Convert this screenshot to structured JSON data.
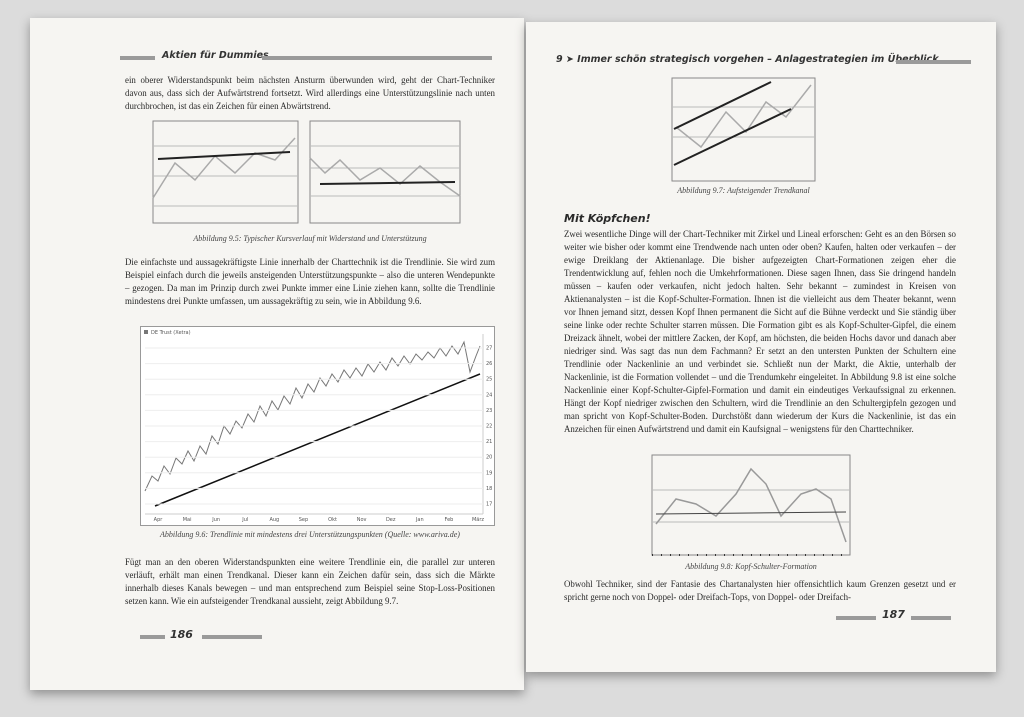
{
  "left_page": {
    "header": "Aktien für Dummies",
    "paragraph_1": "ein oberer Widerstandspunkt beim nächsten Ansturm überwunden wird, geht der Chart-Techniker davon aus, dass sich der Aufwärtstrend fortsetzt. Wird allerdings eine Unterstützungslinie nach unten durchbrochen, ist das ein Zeichen für einen Abwärtstrend.",
    "figure_1_caption": "Abbildung 9.5: Typischer Kursverlauf mit Widerstand und Unterstützung",
    "paragraph_2": "Die einfachste und aussagekräftigste Linie innerhalb der Charttechnik ist die Trendlinie. Sie wird zum Beispiel einfach durch die jeweils ansteigenden Unterstützungspunkte – also die unteren Wendepunkte – gezogen. Da man im Prinzip durch zwei Punkte immer eine Linie ziehen kann, sollte die Trendlinie mindestens drei Punkte umfassen, um aussagekräftig zu sein, wie in Abbildung 9.6.",
    "figure_2": {
      "legend": "DE Trust (Xetra)",
      "y_labels": [
        "27",
        "26",
        "25",
        "24",
        "23",
        "22",
        "21",
        "20",
        "19",
        "18",
        "17"
      ],
      "x_labels": [
        "Apr",
        "Mai",
        "Jun",
        "Jul",
        "Aug",
        "Sep",
        "Okt",
        "Nov",
        "Dez",
        "Jan",
        "Feb",
        "März"
      ],
      "caption": "Abbildung 9.6: Trendlinie mit mindestens drei Unterstützungspunkten (Quelle: www.ariva.de)"
    },
    "paragraph_3": "Fügt man an den oberen Widerstandspunkten eine weitere Trendlinie ein, die parallel zur unteren verläuft, erhält man einen Trendkanal. Dieser kann ein Zeichen dafür sein, dass sich die Märkte innerhalb dieses Kanals bewegen – und man entsprechend zum Beispiel seine Stop-Loss-Positionen setzen kann. Wie ein aufsteigender Trendkanal aussieht, zeigt Abbildung 9.7.",
    "page_number": "186"
  },
  "right_page": {
    "header": "9 ➤ Immer schön strategisch vorgehen – Anlagestrategien im Überblick",
    "figure_1_caption": "Abbildung 9.7: Aufsteigender Trendkanal",
    "heading": "Mit Köpfchen!",
    "paragraph_1": "Zwei wesentliche Dinge will der Chart-Techniker mit Zirkel und Lineal erforschen: Geht es an den Börsen so weiter wie bisher oder kommt eine Trendwende nach unten oder oben? Kaufen, halten oder verkaufen – der ewige Dreiklang der Aktienanlage. Die bisher aufgezeigten Chart-Formationen zeigen eher die Trendentwicklung auf, fehlen noch die Umkehrformationen. Diese sagen Ihnen, dass Sie dringend handeln müssen – kaufen oder verkaufen, nicht jedoch halten. Sehr bekannt – zumindest in Kreisen von Aktienanalysten – ist die Kopf-Schulter-Formation. Ihnen ist die vielleicht aus dem Theater bekannt, wenn vor Ihnen jemand sitzt, dessen Kopf Ihnen permanent die Sicht auf die Bühne verdeckt und Sie ständig über seine linke oder rechte Schulter starren müssen. Die Formation gibt es als Kopf-Schulter-Gipfel, die einem Dreizack ähnelt, wobei der mittlere Zacken, der Kopf, am höchsten, die beiden Hochs davor und danach aber niedriger sind. Was sagt das nun dem Fachmann? Er setzt an den untersten Punkten der Schultern eine Trendlinie oder Nackenlinie an und verbindet sie. Schließt nun der Markt, die Aktie, unterhalb der Nackenlinie, ist die Formation vollendet – und die Trendumkehr eingeleitet. In Abbildung 9.8 ist eine solche Nackenlinie einer Kopf-Schulter-Gipfel-Formation und damit ein eindeutiges Verkaufssignal zu erkennen. Hängt der Kopf niedriger zwischen den Schultern, wird die Trendlinie an den Schultergipfeln gezogen und man spricht von Kopf-Schulter-Boden. Durchstößt dann wiederum der Kurs die Nackenlinie, ist das ein Anzeichen für einen Aufwärtstrend und damit ein Kaufsignal – wenigstens für den Charttechniker.",
    "figure_2_caption": "Abbildung 9.8: Kopf-Schulter-Formation",
    "paragraph_2": "Obwohl Techniker, sind der Fantasie des Chartanalysten hier offensichtlich kaum Grenzen gesetzt und er spricht gerne noch von Doppel- oder Dreifach-Tops, von Doppel- oder Dreifach-",
    "page_number": "187"
  }
}
